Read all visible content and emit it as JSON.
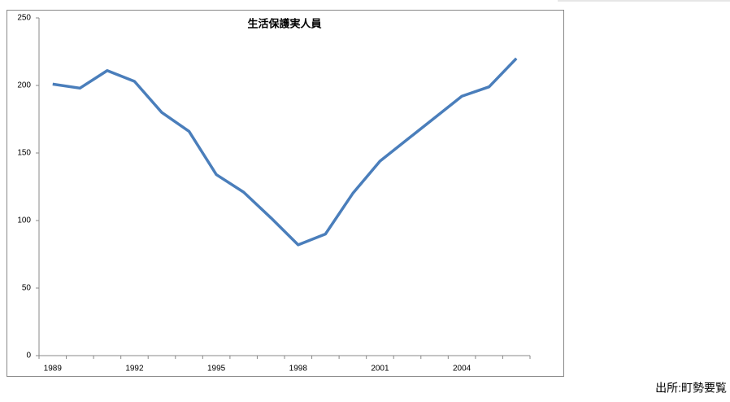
{
  "chart_data": {
    "type": "line",
    "title": "生活保護実人員",
    "categories": [
      "1989",
      null,
      null,
      "1992",
      null,
      null,
      "1995",
      null,
      null,
      "1998",
      null,
      null,
      "2001",
      null,
      null,
      "2004",
      null,
      null
    ],
    "series": [
      {
        "color": "#4a7ebb",
        "values": [
          201,
          198,
          211,
          203,
          180,
          166,
          134,
          121,
          102,
          82,
          90,
          120,
          144,
          160,
          176,
          192,
          199,
          220
        ]
      }
    ],
    "ylim": [
      0,
      250
    ],
    "yticks": [
      0,
      50,
      100,
      150,
      200,
      250
    ],
    "grid": false
  },
  "source": "出所:町勢要覧"
}
